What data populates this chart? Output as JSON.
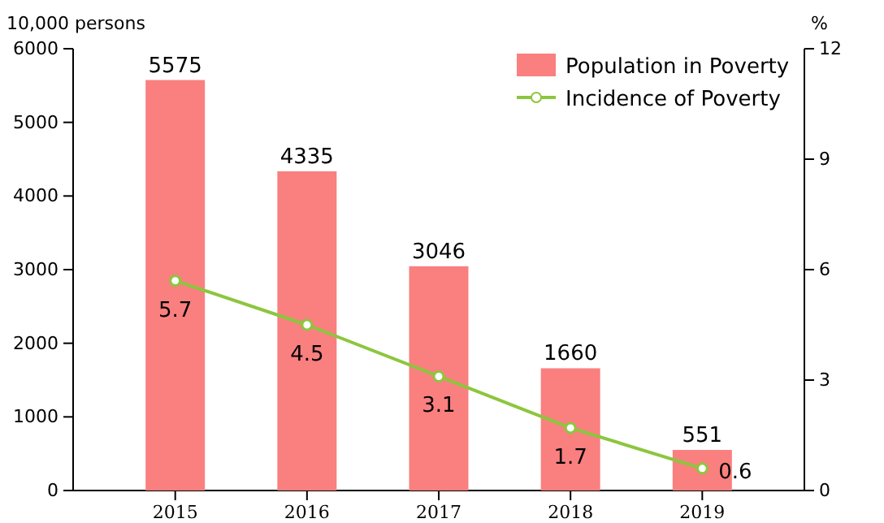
{
  "chart_data": {
    "type": "bar",
    "categories": [
      "2015",
      "2016",
      "2017",
      "2018",
      "2019"
    ],
    "series": [
      {
        "name": "Population in Poverty",
        "color": "#fa7f7f",
        "values": [
          5575,
          4335,
          3046,
          1660,
          551
        ]
      },
      {
        "name": "Incidence of Poverty",
        "type": "line",
        "axis": "y2",
        "color": "#8cc63e",
        "values": [
          5.7,
          4.5,
          3.1,
          1.7,
          0.6
        ]
      }
    ],
    "ylabel": "10,000 persons",
    "y2label": "%",
    "ylim": [
      0,
      6000
    ],
    "yticks": [
      0,
      1000,
      2000,
      3000,
      4000,
      5000,
      6000
    ],
    "y2lim": [
      0,
      12
    ],
    "y2ticks": [
      0,
      3,
      6,
      9,
      12
    ],
    "data_labels": true,
    "legend": "top right",
    "marker": "circle",
    "grid": false
  }
}
